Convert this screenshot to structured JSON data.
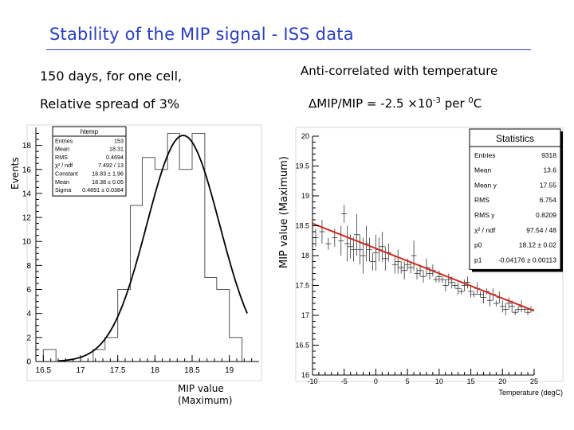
{
  "slide": {
    "title": "Stability of the MIP signal - ISS data",
    "left_line1": "150 days, for one cell,",
    "left_line2": "Relative spread of 3%",
    "right_line1": "Anti-correlated with temperature",
    "right_formula": {
      "prefix": "ΔMIP/MIP = -2.5 ×10",
      "exponent": "-3",
      "middle": " per ",
      "degree": "0",
      "suffix": "C"
    }
  },
  "colors": {
    "title": "#2a3fbf",
    "fit_line_left": "#000000",
    "fit_line_right": "#cc2a1e",
    "stats_box_bg": "#ffffff"
  },
  "chart_data": [
    {
      "type": "bar",
      "subtype": "histogram",
      "xlabel": "MIP value (Maximum)",
      "ylabel": "Events",
      "xlim": [
        16.4,
        19.4
      ],
      "ylim": [
        0,
        19.5
      ],
      "xticks": [
        "16.5",
        "17",
        "17.5",
        "18",
        "18.5",
        "19"
      ],
      "yticks": [
        "0",
        "2",
        "4",
        "6",
        "8",
        "10",
        "12",
        "14",
        "16",
        "18"
      ],
      "bin_width": 0.167,
      "bin_edges": [
        16.5,
        16.67,
        16.83,
        17.0,
        17.17,
        17.33,
        17.5,
        17.67,
        17.83,
        18.0,
        18.17,
        18.33,
        18.5,
        18.67,
        18.83,
        19.0,
        19.17
      ],
      "values": [
        1,
        0,
        0,
        0,
        1,
        2,
        6,
        13,
        17,
        16,
        19,
        16,
        19,
        7,
        6,
        2
      ],
      "fit": {
        "function": "gaus",
        "constant": 18.83,
        "mean": 18.38,
        "sigma": 0.4891
      },
      "stats": {
        "title": "htemp",
        "rows": [
          [
            "Entries",
            "153"
          ],
          [
            "Mean",
            "18.31"
          ],
          [
            "RMS",
            "0.4694"
          ],
          [
            "χ² / ndf",
            "7.492 / 13"
          ],
          [
            "Constant",
            "18.83 ± 1.96"
          ],
          [
            "Mean",
            "18.38 ± 0.05"
          ],
          [
            "Sigma",
            "0.4891 ± 0.0384"
          ]
        ]
      }
    },
    {
      "type": "scatter",
      "xlabel": "Temperature (degC)",
      "ylabel": "MIP value (Maximum)",
      "xlim": [
        -10,
        25
      ],
      "ylim": [
        16,
        20
      ],
      "xticks": [
        "-10",
        "-5",
        "0",
        "5",
        "10",
        "15",
        "20",
        "25"
      ],
      "yticks": [
        "16",
        "16.5",
        "17",
        "17.5",
        "18",
        "18.5",
        "19",
        "19.5",
        "20"
      ],
      "x": [
        -9.5,
        -8.5,
        -7.5,
        -6.5,
        -5.5,
        -5,
        -4.5,
        -4,
        -3.5,
        -3,
        -2.5,
        -2,
        -1.5,
        -1,
        -0.5,
        0,
        0.5,
        1,
        1.5,
        2,
        3,
        3.5,
        4,
        4.5,
        5,
        5.5,
        6,
        6.5,
        7,
        7.5,
        8,
        8.5,
        9,
        9.5,
        10,
        10.5,
        11,
        11.5,
        12,
        12.5,
        13,
        13.5,
        14,
        14.5,
        15,
        15.5,
        16,
        16.5,
        17,
        17.5,
        18,
        18.5,
        19,
        19.5,
        20,
        20.5,
        21,
        21.5,
        22,
        22.5,
        23,
        23.5,
        24,
        24.5
      ],
      "y": [
        18.3,
        18.4,
        18.2,
        18.3,
        18.25,
        18.7,
        18.2,
        18.15,
        18.1,
        18.35,
        18.1,
        18.0,
        18.2,
        18.1,
        17.9,
        18.05,
        18.1,
        18.15,
        17.95,
        18.05,
        17.85,
        17.9,
        17.8,
        17.75,
        17.85,
        17.8,
        18.0,
        17.7,
        17.75,
        17.65,
        17.8,
        17.7,
        17.75,
        17.6,
        17.65,
        17.6,
        17.5,
        17.6,
        17.55,
        17.5,
        17.45,
        17.4,
        17.5,
        17.55,
        17.4,
        17.35,
        17.45,
        17.35,
        17.3,
        17.4,
        17.25,
        17.35,
        17.2,
        17.3,
        17.15,
        17.1,
        17.2,
        17.15,
        17.05,
        17.1,
        17.15,
        17.1,
        17.05,
        17.1
      ],
      "yerr": [
        0.15,
        0.2,
        0.1,
        0.15,
        0.25,
        0.15,
        0.3,
        0.2,
        0.2,
        0.35,
        0.25,
        0.3,
        0.3,
        0.2,
        0.15,
        0.3,
        0.2,
        0.25,
        0.2,
        0.15,
        0.15,
        0.2,
        0.1,
        0.15,
        0.1,
        0.1,
        0.25,
        0.1,
        0.1,
        0.1,
        0.15,
        0.1,
        0.1,
        0.05,
        0.1,
        0.05,
        0.1,
        0.1,
        0.1,
        0.05,
        0.1,
        0.05,
        0.1,
        0.1,
        0.1,
        0.05,
        0.1,
        0.05,
        0.1,
        0.05,
        0.1,
        0.1,
        0.05,
        0.1,
        0.1,
        0.1,
        0.1,
        0.1,
        0.05,
        0.05,
        0.1,
        0.05,
        0.05,
        0.05
      ],
      "fit": {
        "function": "pol1",
        "p0": 18.12,
        "p1": -0.04176
      },
      "stats": {
        "title": "Statistics",
        "rows": [
          [
            "Entries",
            "9318"
          ],
          [
            "Mean",
            "13.6"
          ],
          [
            "Mean y",
            "17.55"
          ],
          [
            "RMS",
            "6.754"
          ],
          [
            "RMS y",
            "0.8209"
          ],
          [
            "χ² / ndf",
            "97.54 / 48"
          ],
          [
            "p0",
            "18.12 ± 0.02"
          ],
          [
            "p1",
            "-0.04176 ± 0.00113"
          ]
        ]
      }
    }
  ]
}
